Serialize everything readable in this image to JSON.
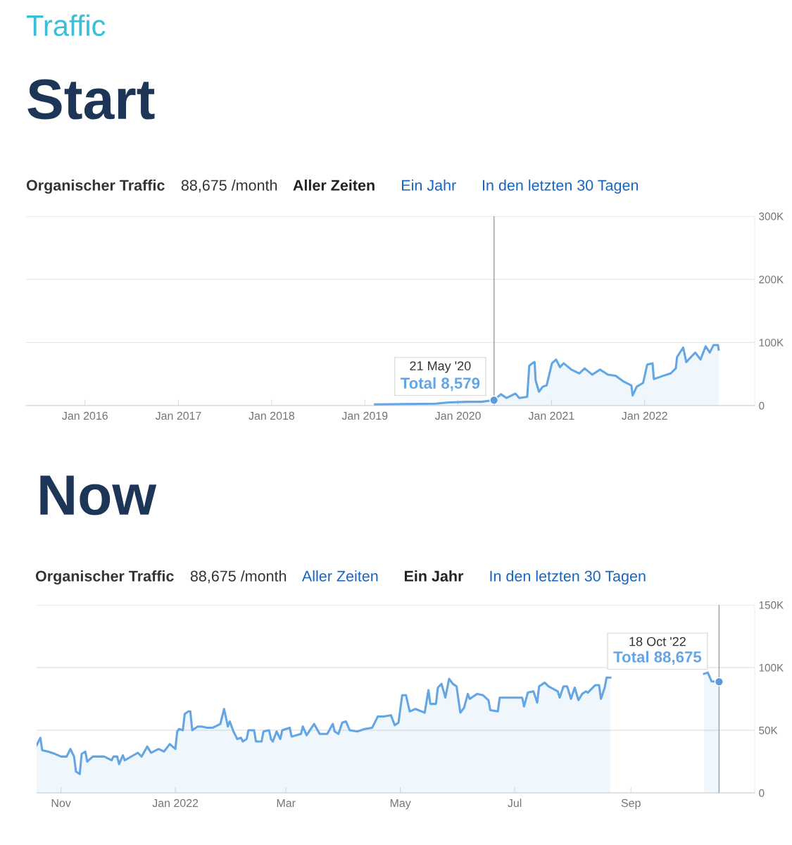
{
  "chart_data": [
    {
      "type": "area",
      "title": "Start",
      "ylim": [
        0,
        300000
      ],
      "xlim": [
        "2015-05-15",
        "2023-03-08"
      ],
      "grid": "y",
      "yticks": [
        {
          "value": 0,
          "label": "0"
        },
        {
          "value": 100000,
          "label": "100K"
        },
        {
          "value": 200000,
          "label": "200K"
        },
        {
          "value": 300000,
          "label": "300K"
        }
      ],
      "xticks": [
        {
          "value": "2016-01-01",
          "label": "Jan 2016"
        },
        {
          "value": "2017-01-01",
          "label": "Jan 2017"
        },
        {
          "value": "2018-01-01",
          "label": "Jan 2018"
        },
        {
          "value": "2019-01-01",
          "label": "Jan 2019"
        },
        {
          "value": "2020-01-01",
          "label": "Jan 2020"
        },
        {
          "value": "2021-01-01",
          "label": "Jan 2021"
        },
        {
          "value": "2022-01-01",
          "label": "Jan 2022"
        }
      ],
      "ref_lines": [
        {
          "axis": "x",
          "value": "2020-05-21",
          "color": "#9e9e9e"
        }
      ],
      "series": [
        {
          "color": "#64a5e3",
          "x": [
            "2019-02-10",
            "2019-10-05",
            "2019-11-25",
            "2020-02-06",
            "2020-04-01",
            "2020-05-21",
            "2020-06-17",
            "2020-07-09",
            "2020-08-13",
            "2020-08-28",
            "2020-09-28",
            "2020-10-06",
            "2020-10-18",
            "2020-10-27",
            "2020-10-31",
            "2020-11-13",
            "2020-11-28",
            "2020-12-13",
            "2021-01-03",
            "2021-01-19",
            "2021-02-03",
            "2021-02-18",
            "2021-03-20",
            "2021-04-20",
            "2021-05-11",
            "2021-06-10",
            "2021-07-10",
            "2021-08-10",
            "2021-09-10",
            "2021-10-11",
            "2021-11-10",
            "2021-11-15",
            "2021-12-01",
            "2021-12-26",
            "2022-01-11",
            "2022-02-01",
            "2022-02-06",
            "2022-03-13",
            "2022-04-13",
            "2022-05-03",
            "2022-05-08",
            "2022-06-01",
            "2022-06-13",
            "2022-07-18",
            "2022-08-08",
            "2022-08-28",
            "2022-09-13",
            "2022-09-28",
            "2022-10-15",
            "2022-10-18"
          ],
          "values": [
            2000,
            3000,
            5000,
            6000,
            6000,
            8579,
            18000,
            12000,
            19000,
            12000,
            14000,
            63000,
            67000,
            69000,
            40000,
            22000,
            30000,
            32000,
            67000,
            73000,
            61000,
            67000,
            57000,
            51000,
            59000,
            49000,
            57000,
            49000,
            47000,
            38000,
            32000,
            16000,
            30000,
            36000,
            65000,
            67000,
            42000,
            47000,
            51000,
            59000,
            77000,
            92000,
            69000,
            84000,
            73000,
            94000,
            84000,
            96000,
            96000,
            88675
          ]
        }
      ],
      "annotations": [
        "Traffic",
        "Organischer Traffic",
        "88,675 /month",
        "Aller Zeiten",
        "Ein Jahr",
        "In den letzten 30 Tagen",
        {
          "text": "21 May '20\nTotal 8,579",
          "x": "2020-05-21",
          "y": 8579
        }
      ]
    },
    {
      "type": "area",
      "title": "Now",
      "ylim": [
        0,
        150000
      ],
      "xlim": [
        "2021-10-19",
        "2022-11-06"
      ],
      "grid": "y",
      "yticks": [
        {
          "value": 0,
          "label": "0"
        },
        {
          "value": 50000,
          "label": "50K"
        },
        {
          "value": 100000,
          "label": "100K"
        },
        {
          "value": 150000,
          "label": "150K"
        }
      ],
      "xticks": [
        {
          "value": "2021-11-01",
          "label": "Nov"
        },
        {
          "value": "2022-01-01",
          "label": "Jan 2022"
        },
        {
          "value": "2022-03-01",
          "label": "Mar"
        },
        {
          "value": "2022-05-01",
          "label": "May"
        },
        {
          "value": "2022-07-01",
          "label": "Jul"
        },
        {
          "value": "2022-09-01",
          "label": "Sep"
        }
      ],
      "ref_lines": [
        {
          "axis": "x",
          "value": "2022-10-18",
          "color": "#9e9e9e"
        }
      ],
      "series": [
        {
          "color": "#64a5e3",
          "x": [
            "2021-10-19",
            "2021-10-21",
            "2021-10-22",
            "2021-10-25",
            "2021-10-29",
            "2021-11-01",
            "2021-11-04",
            "2021-11-06",
            "2021-11-08",
            "2021-11-09",
            "2021-11-11",
            "2021-11-12",
            "2021-11-14",
            "2021-11-15",
            "2021-11-18",
            "2021-11-24",
            "2021-11-28",
            "2021-11-29",
            "2021-12-01",
            "2021-12-02",
            "2021-12-04",
            "2021-12-05",
            "2021-12-12",
            "2021-12-14",
            "2021-12-17",
            "2021-12-19",
            "2021-12-23",
            "2021-12-26",
            "2021-12-29",
            "2022-01-01",
            "2022-01-02",
            "2022-01-03",
            "2022-01-05",
            "2022-01-06",
            "2022-01-08",
            "2022-01-09",
            "2022-01-10",
            "2022-01-13",
            "2022-01-15",
            "2022-01-18",
            "2022-01-21",
            "2022-01-25",
            "2022-01-27",
            "2022-01-29",
            "2022-01-30",
            "2022-02-01",
            "2022-02-03",
            "2022-02-05",
            "2022-02-06",
            "2022-02-08",
            "2022-02-09",
            "2022-02-12",
            "2022-02-13",
            "2022-02-16",
            "2022-02-17",
            "2022-02-20",
            "2022-02-21",
            "2022-02-22",
            "2022-02-24",
            "2022-02-26",
            "2022-02-27",
            "2022-03-03",
            "2022-03-04",
            "2022-03-09",
            "2022-03-10",
            "2022-03-12",
            "2022-03-16",
            "2022-03-19",
            "2022-03-23",
            "2022-03-26",
            "2022-03-27",
            "2022-03-29",
            "2022-03-31",
            "2022-04-02",
            "2022-04-04",
            "2022-04-08",
            "2022-04-12",
            "2022-04-16",
            "2022-04-19",
            "2022-04-22",
            "2022-04-26",
            "2022-04-28",
            "2022-04-30",
            "2022-05-02",
            "2022-05-04",
            "2022-05-06",
            "2022-05-09",
            "2022-05-14",
            "2022-05-16",
            "2022-05-17",
            "2022-05-20",
            "2022-05-21",
            "2022-05-23",
            "2022-05-25",
            "2022-05-27",
            "2022-05-29",
            "2022-05-31",
            "2022-06-02",
            "2022-06-04",
            "2022-06-06",
            "2022-06-07",
            "2022-06-11",
            "2022-06-14",
            "2022-06-17",
            "2022-06-18",
            "2022-06-22",
            "2022-06-23",
            "2022-06-30",
            "2022-07-05",
            "2022-07-06",
            "2022-07-08",
            "2022-07-11",
            "2022-07-13",
            "2022-07-14",
            "2022-07-17",
            "2022-07-19",
            "2022-07-24",
            "2022-07-25",
            "2022-07-27",
            "2022-07-29",
            "2022-07-31",
            "2022-08-02",
            "2022-08-04",
            "2022-08-06",
            "2022-08-08",
            "2022-08-09",
            "2022-08-13",
            "2022-08-15",
            "2022-08-16",
            "2022-08-18",
            "2022-08-19",
            "2022-08-21",
            "2022-09-20",
            "2022-10-10",
            "2022-10-12",
            "2022-10-14",
            "2022-10-18"
          ],
          "values": [
            38000,
            44000,
            34000,
            33000,
            31000,
            29000,
            29000,
            35000,
            29000,
            17000,
            15000,
            31000,
            33000,
            25000,
            29000,
            29000,
            26000,
            29000,
            29000,
            23000,
            30000,
            26000,
            32000,
            29000,
            37000,
            32000,
            35000,
            33000,
            39000,
            35000,
            49000,
            51000,
            50000,
            63000,
            65000,
            65000,
            50000,
            53000,
            53000,
            52000,
            52000,
            55000,
            67000,
            53000,
            57000,
            49000,
            43000,
            44000,
            41000,
            43000,
            50000,
            50000,
            41000,
            41000,
            49000,
            50000,
            43000,
            41000,
            49000,
            43000,
            50000,
            52000,
            45000,
            47000,
            53000,
            46000,
            55000,
            47000,
            47000,
            55000,
            49000,
            47000,
            56000,
            57000,
            50000,
            49000,
            51000,
            52000,
            61000,
            61000,
            62000,
            54000,
            56000,
            78000,
            78000,
            65000,
            67000,
            64000,
            82000,
            71000,
            71000,
            84000,
            87000,
            76000,
            91000,
            87000,
            85000,
            64000,
            68000,
            79000,
            75000,
            79000,
            78000,
            74000,
            66000,
            65000,
            76000,
            76000,
            76000,
            69000,
            80000,
            81000,
            72000,
            85000,
            88000,
            85000,
            81000,
            76000,
            85000,
            85000,
            75000,
            84000,
            74000,
            79000,
            81000,
            80000,
            86000,
            86000,
            75000,
            84000,
            92000,
            92000,
            null,
            95000,
            96000,
            89000,
            88675
          ]
        }
      ],
      "annotations": [
        "Organischer Traffic",
        "88,675 /month",
        "Aller Zeiten",
        "Ein Jahr",
        "In den letzten 30 Tagen",
        {
          "text": "18 Oct '22\nTotal 88,675",
          "x": "2022-10-18",
          "y": 88675
        }
      ]
    }
  ]
}
